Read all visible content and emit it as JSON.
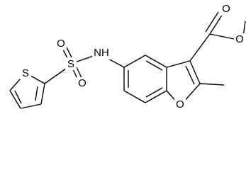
{
  "atoms": [
    {
      "label": "S"
    },
    {
      "label": "S"
    },
    {
      "label": "O"
    },
    {
      "label": "O"
    },
    {
      "label": "NH"
    },
    {
      "label": "O"
    },
    {
      "label": "O"
    },
    {
      "label": "O"
    }
  ]
}
